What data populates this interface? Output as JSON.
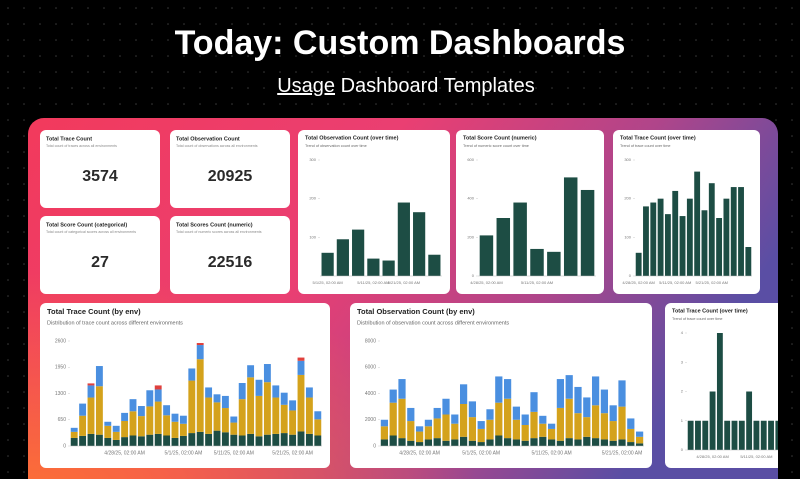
{
  "header": {
    "title": "Today: Custom Dashboards",
    "subtitle_link": "Usage",
    "subtitle": "Dashboard Templates"
  },
  "stats": [
    {
      "title": "Total Trace Count",
      "description": "Total count of traces across all environments",
      "value": 3574
    },
    {
      "title": "Total Observation Count",
      "description": "Total count of observations across all environments",
      "value": 20925
    },
    {
      "title": "Total Score Count (categorical)",
      "description": "Total count of categorical scores across all environments",
      "value": 27
    },
    {
      "title": "Total Scores Count (numeric)",
      "description": "Total count of numeric scores across all environments",
      "value": 22516
    }
  ],
  "chart_data": [
    {
      "type": "bar",
      "title": "Total Observation Count (over time)",
      "subtitle": "Trend of observation count over time",
      "color": "#1d4d44",
      "categories": [
        "5/1/25, 02:00 AM",
        null,
        null,
        "5/11/25, 02:00 AM",
        null,
        "5/21/25, 02:00 AM",
        null,
        null
      ],
      "values": [
        60,
        95,
        120,
        45,
        40,
        190,
        165,
        55
      ],
      "ylim": [
        0,
        300
      ],
      "yticks": [
        100,
        200,
        300
      ]
    },
    {
      "type": "bar",
      "title": "Total Score Count (numeric)",
      "subtitle": "Trend of numeric score count over time",
      "color": "#1d4d44",
      "categories": [
        "4/28/25, 02:00 AM",
        null,
        null,
        "5/11/25, 02:00 AM",
        null,
        null,
        null
      ],
      "values": [
        210,
        300,
        380,
        140,
        125,
        510,
        445
      ],
      "ylim": [
        0,
        600
      ],
      "yticks": [
        0,
        200,
        400,
        600
      ]
    },
    {
      "type": "bar",
      "title": "Total Trace Count (over time)",
      "subtitle": "Trend of trace count over time",
      "color": "#1d4d44",
      "categories": [
        "4/28/25, 02:00 AM",
        null,
        null,
        null,
        null,
        "5/11/25, 02:00 AM",
        null,
        null,
        null,
        null,
        "5/21/25, 02:00 AM",
        null,
        null,
        null,
        null,
        null
      ],
      "values": [
        60,
        180,
        190,
        200,
        160,
        220,
        155,
        200,
        270,
        170,
        240,
        150,
        200,
        230,
        230,
        75
      ],
      "ylim": [
        0,
        300
      ],
      "yticks": [
        0,
        100,
        200,
        300
      ]
    },
    {
      "type": "stacked-bar",
      "title": "Total Trace Count (by env)",
      "subtitle": "Distribution of trace count across different environments",
      "categories": [
        null,
        null,
        null,
        null,
        null,
        null,
        "4/28/25, 02:00 AM",
        null,
        null,
        null,
        null,
        null,
        null,
        "5/1/25, 02:00 AM",
        null,
        null,
        null,
        null,
        null,
        "5/11/25, 02:00 AM",
        null,
        null,
        null,
        null,
        null,
        null,
        "5/21/25, 02:00 AM",
        null,
        null,
        null
      ],
      "series": [
        {
          "color": "#1d4d44",
          "values": [
            200,
            250,
            300,
            280,
            200,
            150,
            220,
            260,
            240,
            280,
            300,
            260,
            200,
            250,
            320,
            350,
            300,
            380,
            340,
            280,
            260,
            300,
            240,
            280,
            300,
            320,
            280,
            360,
            300,
            260
          ]
        },
        {
          "color": "#d4a21c",
          "values": [
            150,
            500,
            900,
            1200,
            300,
            200,
            400,
            600,
            500,
            700,
            800,
            500,
            400,
            300,
            1300,
            1800,
            900,
            700,
            600,
            300,
            900,
            1400,
            1000,
            1300,
            900,
            700,
            600,
            1400,
            900,
            400
          ]
        },
        {
          "color": "#4a8fe0",
          "values": [
            100,
            300,
            300,
            500,
            100,
            150,
            200,
            300,
            250,
            400,
            300,
            250,
            200,
            200,
            300,
            350,
            250,
            200,
            300,
            150,
            400,
            300,
            400,
            450,
            300,
            300,
            250,
            350,
            250,
            200
          ]
        },
        {
          "color": "#e0403c",
          "values": [
            0,
            0,
            50,
            0,
            0,
            0,
            0,
            0,
            0,
            0,
            100,
            0,
            0,
            0,
            0,
            50,
            0,
            0,
            0,
            0,
            0,
            0,
            0,
            0,
            0,
            0,
            0,
            80,
            0,
            0
          ]
        }
      ],
      "ylim": [
        0,
        2600
      ],
      "yticks": [
        0,
        650,
        1300,
        1950,
        2600
      ]
    },
    {
      "type": "stacked-bar",
      "title": "Total Observation Count (by env)",
      "subtitle": "Distribution of observation count across different environments",
      "categories": [
        null,
        null,
        null,
        null,
        "4/28/25, 02:00 AM",
        null,
        null,
        null,
        null,
        null,
        null,
        "5/1/25, 02:00 AM",
        null,
        null,
        null,
        null,
        null,
        null,
        null,
        "5/11/25, 02:00 AM",
        null,
        null,
        null,
        null,
        null,
        null,
        null,
        "5/21/25, 02:00 AM",
        null,
        null
      ],
      "series": [
        {
          "color": "#1d4d44",
          "values": [
            500,
            800,
            600,
            400,
            300,
            500,
            600,
            400,
            500,
            700,
            400,
            300,
            500,
            800,
            600,
            500,
            400,
            600,
            700,
            500,
            400,
            600,
            500,
            700,
            600,
            500,
            400,
            500,
            300,
            200
          ]
        },
        {
          "color": "#d4a21c",
          "values": [
            1000,
            2500,
            3000,
            1500,
            800,
            1000,
            1500,
            2000,
            1200,
            2500,
            1800,
            1000,
            1500,
            2500,
            3000,
            1500,
            1200,
            2000,
            1000,
            800,
            2500,
            3000,
            2000,
            1500,
            2500,
            2000,
            1500,
            2500,
            1000,
            500
          ]
        },
        {
          "color": "#4a8fe0",
          "values": [
            500,
            1000,
            1500,
            1000,
            400,
            500,
            800,
            1200,
            700,
            1500,
            1200,
            600,
            800,
            2000,
            1500,
            1000,
            800,
            1500,
            600,
            400,
            2200,
            1800,
            2000,
            1500,
            2200,
            1800,
            1200,
            2000,
            800,
            400
          ]
        }
      ],
      "ylim": [
        0,
        8000
      ],
      "yticks": [
        0,
        2000,
        4000,
        6000,
        8000
      ]
    },
    {
      "type": "bar",
      "title": "Total Trace Count (over time)",
      "subtitle": "Trend of trace count over time",
      "color": "#1d4d44",
      "categories": [
        null,
        null,
        null,
        "4/28/25, 02:00 AM",
        null,
        null,
        null,
        null,
        null,
        "5/11/25, 02:00 AM",
        null,
        null,
        null
      ],
      "values": [
        1,
        1,
        1,
        2,
        4,
        1,
        1,
        1,
        2,
        1,
        1,
        1,
        1
      ],
      "ylim": [
        0,
        4
      ],
      "yticks": [
        0,
        1,
        2,
        3,
        4
      ]
    }
  ]
}
